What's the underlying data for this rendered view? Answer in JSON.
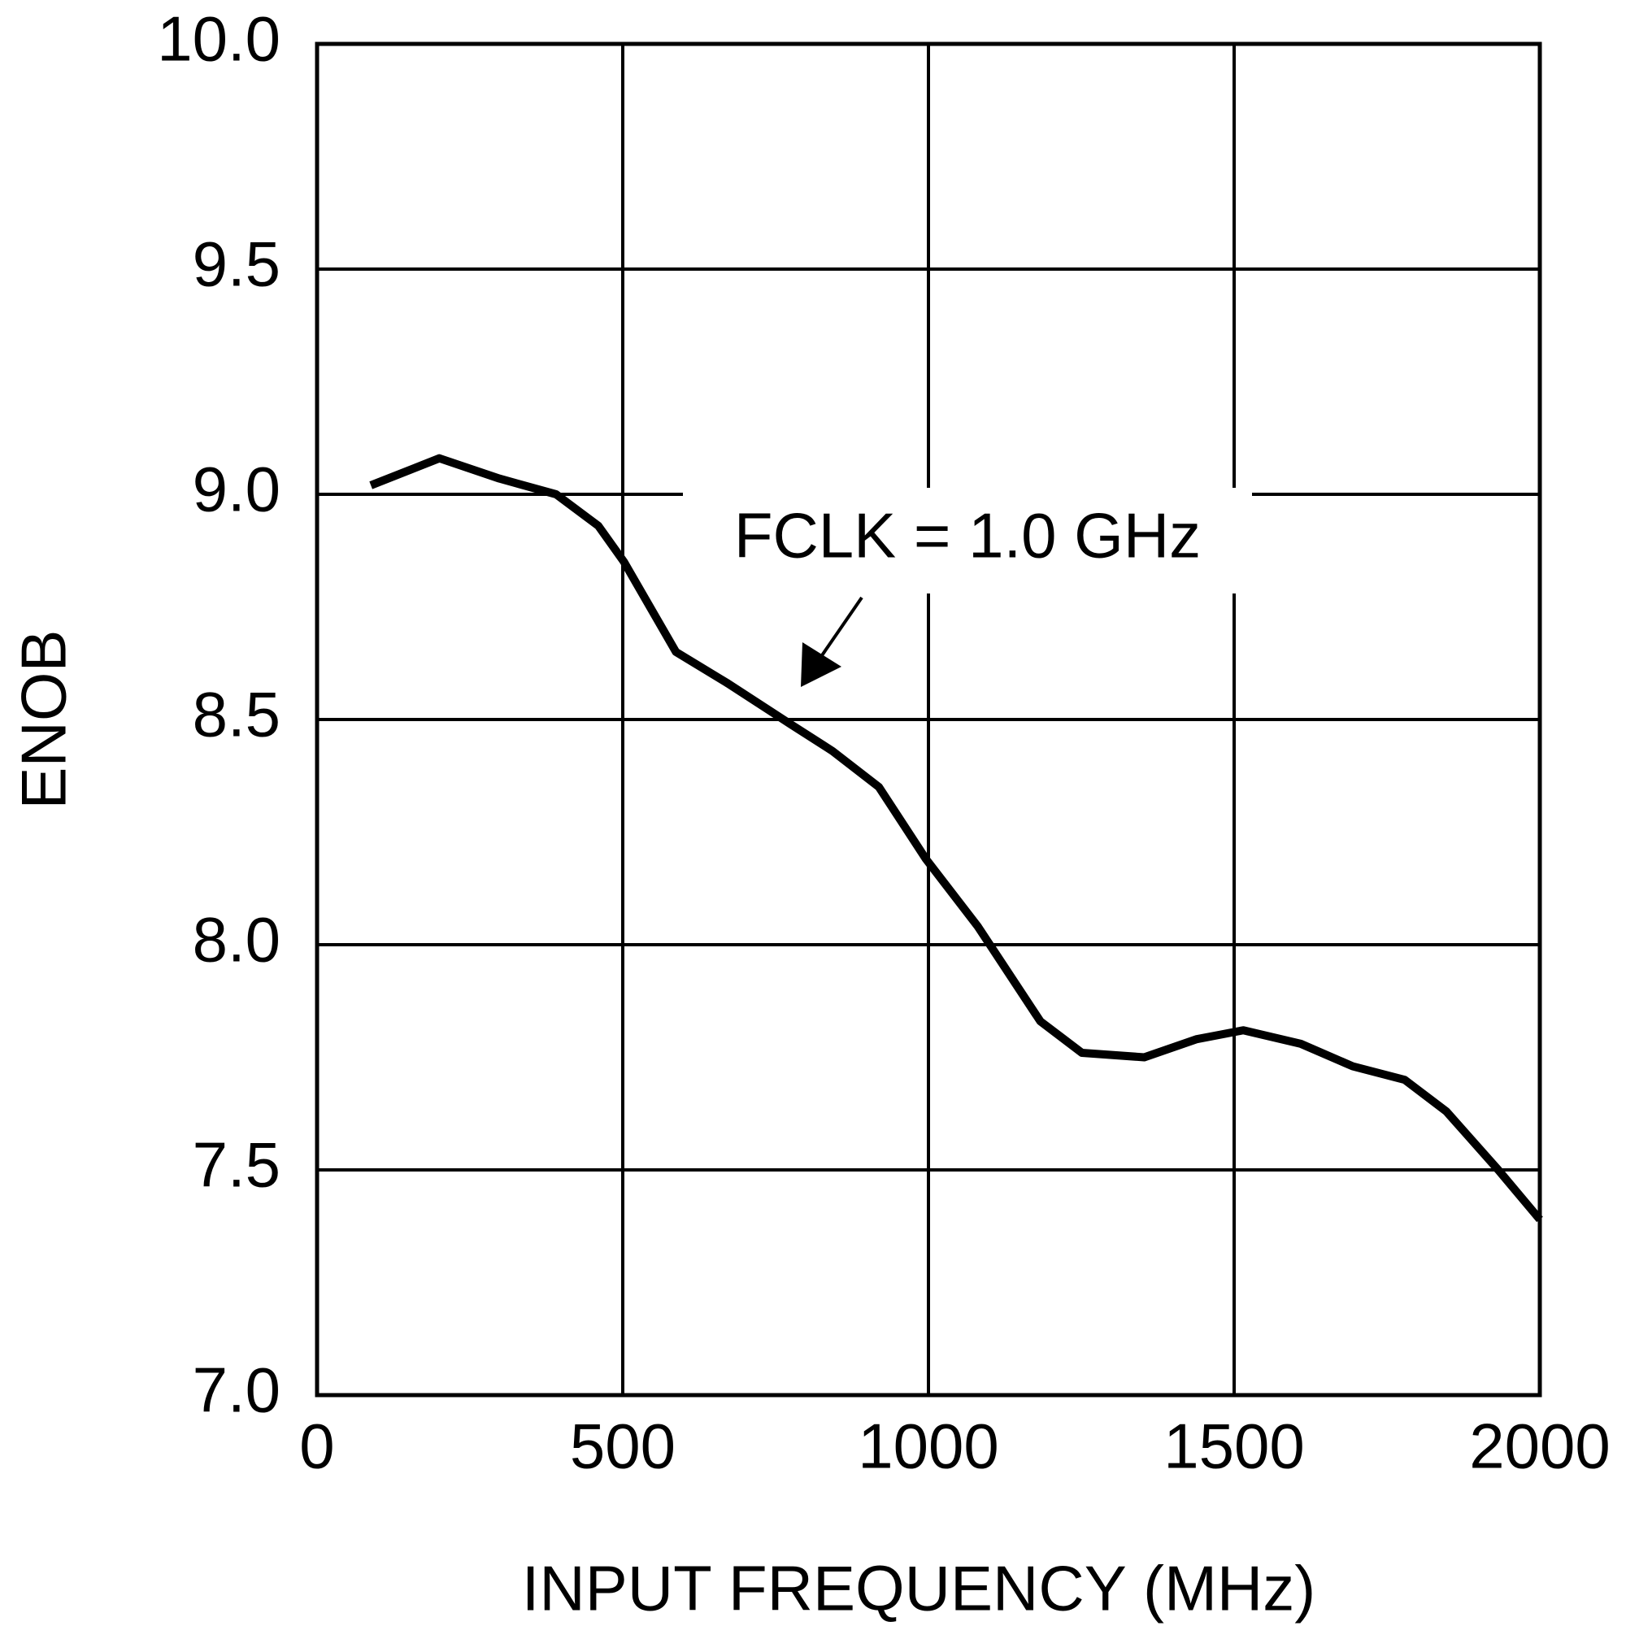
{
  "chart_data": {
    "type": "line",
    "x_label": "INPUT FREQUENCY (MHz)",
    "y_label": "ENOB",
    "annotation": "FCLK = 1.0 GHz",
    "xlim": [
      0,
      2000
    ],
    "xticks": [
      0,
      500,
      1000,
      1500,
      2000
    ],
    "ylim": [
      7,
      10
    ],
    "yticks": [
      {
        "value": 7,
        "label": "7.0"
      },
      {
        "value": 7.5,
        "label": "7.5"
      },
      {
        "value": 8,
        "label": "8.0"
      },
      {
        "value": 8.5,
        "label": "8.5"
      },
      {
        "value": 9,
        "label": "9.0"
      },
      {
        "value": 9.5,
        "label": "9.5"
      },
      {
        "value": 10,
        "label": "10.0"
      }
    ],
    "grid": true,
    "series": [
      {
        "color": "#000000",
        "x": [
          88,
          200,
          298,
          391,
          460,
          502,
          587,
          672,
          774,
          843,
          919,
          996,
          1081,
          1183,
          1251,
          1353,
          1438,
          1515,
          1609,
          1694,
          1779,
          1847,
          1932,
          2000
        ],
        "values": [
          9.02,
          9.08,
          9.035,
          9.0,
          8.93,
          8.85,
          8.65,
          8.58,
          8.49,
          8.43,
          8.35,
          8.19,
          8.04,
          7.83,
          7.76,
          7.75,
          7.79,
          7.81,
          7.78,
          7.73,
          7.7,
          7.63,
          7.5,
          7.39
        ]
      }
    ]
  }
}
